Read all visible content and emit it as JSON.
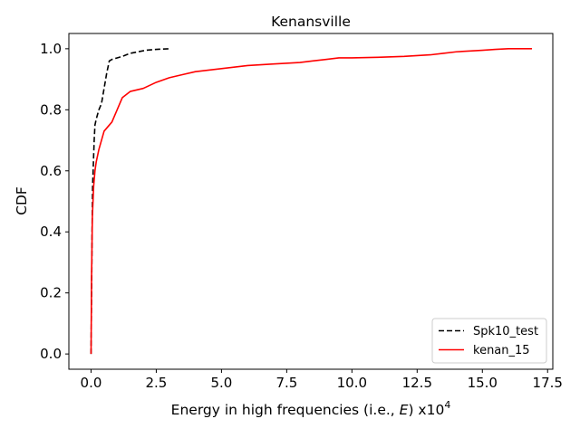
{
  "chart_data": {
    "type": "line",
    "title": "Kenansville",
    "xlabel_prefix": "Energy in high frequencies (i.e., ",
    "xlabel_var": "E",
    "xlabel_mid": ") x10",
    "xlabel_sup": "4",
    "ylabel": "CDF",
    "xlim": [
      -0.85,
      17.7
    ],
    "ylim": [
      -0.05,
      1.05
    ],
    "xticks": [
      0.0,
      2.5,
      5.0,
      7.5,
      10.0,
      12.5,
      15.0,
      17.5
    ],
    "xtick_labels": [
      "0.0",
      "2.5",
      "5.0",
      "7.5",
      "10.0",
      "12.5",
      "15.0",
      "17.5"
    ],
    "yticks": [
      0.0,
      0.2,
      0.4,
      0.6,
      0.8,
      1.0
    ],
    "ytick_labels": [
      "0.0",
      "0.2",
      "0.4",
      "0.6",
      "0.8",
      "1.0"
    ],
    "grid": false,
    "legend_position": "lower-right",
    "series": [
      {
        "name": "Spk10_test",
        "color": "#000000",
        "style": "dashed",
        "x": [
          0.0,
          0.02,
          0.04,
          0.06,
          0.08,
          0.1,
          0.12,
          0.15,
          0.2,
          0.3,
          0.4,
          0.5,
          0.6,
          0.7,
          0.8,
          1.0,
          1.2,
          1.5,
          1.8,
          2.1,
          2.5,
          3.0
        ],
        "y": [
          0.0,
          0.2,
          0.4,
          0.55,
          0.6,
          0.65,
          0.7,
          0.75,
          0.77,
          0.8,
          0.82,
          0.87,
          0.92,
          0.96,
          0.965,
          0.97,
          0.975,
          0.985,
          0.99,
          0.995,
          0.998,
          1.0
        ]
      },
      {
        "name": "kenan_15",
        "color": "#ff0000",
        "style": "solid",
        "x": [
          0.0,
          0.02,
          0.05,
          0.1,
          0.15,
          0.2,
          0.3,
          0.4,
          0.5,
          0.6,
          0.8,
          1.0,
          1.2,
          1.5,
          2.0,
          2.5,
          3.0,
          3.5,
          4.0,
          5.0,
          6.0,
          7.0,
          8.0,
          8.5,
          9.0,
          9.5,
          10.0,
          11.0,
          12.0,
          13.0,
          13.5,
          14.0,
          15.0,
          15.5,
          16.0,
          16.9
        ],
        "y": [
          0.0,
          0.25,
          0.45,
          0.55,
          0.6,
          0.63,
          0.67,
          0.7,
          0.73,
          0.74,
          0.76,
          0.8,
          0.84,
          0.86,
          0.87,
          0.89,
          0.905,
          0.915,
          0.925,
          0.935,
          0.945,
          0.95,
          0.955,
          0.96,
          0.965,
          0.97,
          0.97,
          0.972,
          0.975,
          0.98,
          0.985,
          0.99,
          0.995,
          0.998,
          1.0,
          1.0
        ]
      }
    ]
  }
}
